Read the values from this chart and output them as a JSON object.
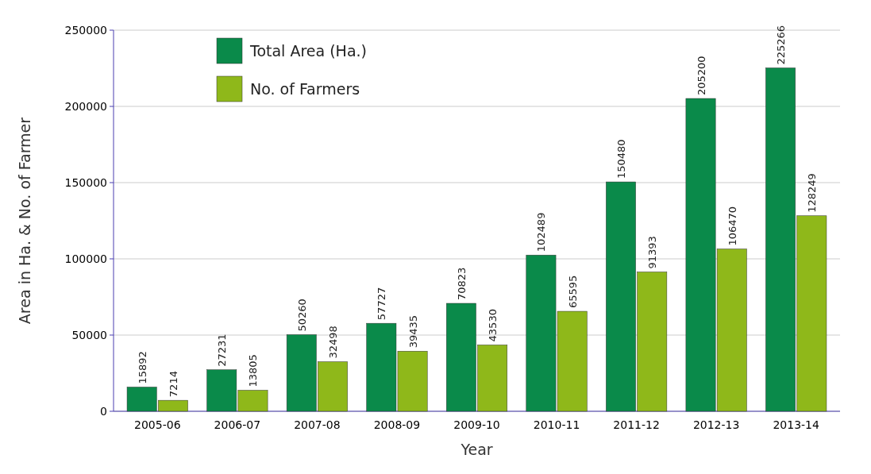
{
  "chart_data": {
    "type": "bar",
    "xlabel": "Year",
    "ylabel": "Area in Ha. & No. of Farmer",
    "categories": [
      "2005-06",
      "2006-07",
      "2007-08",
      "2008-09",
      "2009-10",
      "2010-11",
      "2011-12",
      "2012-13",
      "2013-14"
    ],
    "series": [
      {
        "name": "Total Area (Ha.)",
        "color": "#0a8a4a",
        "values": [
          15892,
          27231,
          50260,
          57727,
          70823,
          102489,
          150480,
          205200,
          225266
        ]
      },
      {
        "name": "No. of Farmers",
        "color": "#8fb81a",
        "values": [
          7214,
          13805,
          32498,
          39435,
          43530,
          65595,
          91393,
          106470,
          128249
        ]
      }
    ],
    "ylim": [
      0,
      250000
    ],
    "yticks": [
      0,
      50000,
      100000,
      150000,
      200000,
      250000
    ],
    "grid": "y",
    "legend": "top left",
    "data_labels": true
  }
}
